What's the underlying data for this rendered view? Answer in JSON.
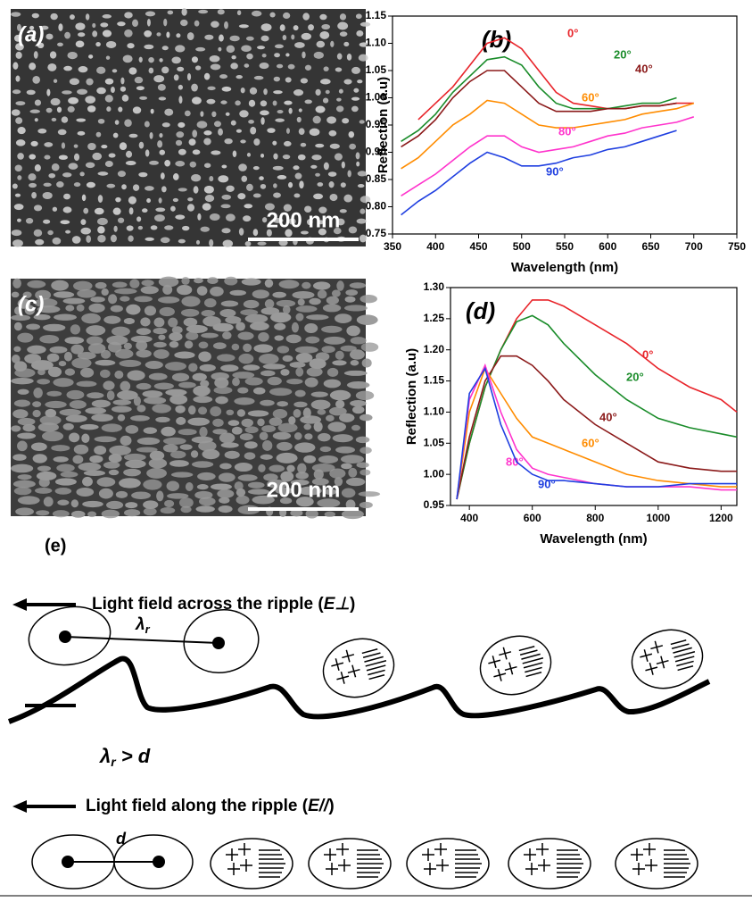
{
  "panels": {
    "a": {
      "label": "(a)",
      "scale_bar": "200 nm"
    },
    "c": {
      "label": "(c)",
      "scale_bar": "200 nm"
    },
    "e": {
      "label": "(e)",
      "across": {
        "prefix": "Light field across the ripple (",
        "symbol": "E⊥",
        "suffix": ")"
      },
      "lambda": {
        "symbol": "λ",
        "subscript": "r"
      },
      "condition": {
        "symbol": "λ",
        "subscript": "r",
        "rest": " > d"
      },
      "along": {
        "prefix": "Light field along the ripple (",
        "symbol": "E//",
        "suffix": ")"
      },
      "spacing": "d"
    }
  },
  "chart_data": [
    {
      "type": "line",
      "label": "(b)",
      "x_label": "Wavelength (nm)",
      "y_label": "Reflection (a.u)",
      "x": [
        360,
        380,
        400,
        420,
        440,
        460,
        480,
        500,
        520,
        540,
        560,
        580,
        600,
        620,
        640,
        660,
        680,
        700
      ],
      "series": [
        {
          "name": "0°",
          "color": "#e8242a",
          "values": [
            null,
            0.96,
            0.99,
            1.02,
            1.06,
            1.1,
            1.11,
            1.09,
            1.05,
            1.01,
            0.99,
            0.985,
            0.98,
            0.98,
            0.985,
            0.985,
            0.99,
            0.99
          ]
        },
        {
          "name": "20°",
          "color": "#1a8c2a",
          "values": [
            0.92,
            0.94,
            0.97,
            1.01,
            1.04,
            1.07,
            1.075,
            1.06,
            1.02,
            0.99,
            0.98,
            0.98,
            0.98,
            0.985,
            0.99,
            0.99,
            1.0,
            null
          ]
        },
        {
          "name": "40°",
          "color": "#8b1a1a",
          "values": [
            0.91,
            0.93,
            0.96,
            1.0,
            1.03,
            1.05,
            1.05,
            1.02,
            0.99,
            0.975,
            0.975,
            0.975,
            0.98,
            0.98,
            0.985,
            0.985,
            0.99,
            null
          ]
        },
        {
          "name": "60°",
          "color": "#ff8c00",
          "values": [
            0.87,
            0.89,
            0.92,
            0.95,
            0.97,
            0.995,
            0.99,
            0.97,
            0.95,
            0.945,
            0.945,
            0.95,
            0.955,
            0.96,
            0.97,
            0.975,
            0.98,
            0.99
          ]
        },
        {
          "name": "80°",
          "color": "#ff33cc",
          "values": [
            0.82,
            0.84,
            0.86,
            0.885,
            0.91,
            0.93,
            0.93,
            0.91,
            0.9,
            0.905,
            0.91,
            0.92,
            0.93,
            0.935,
            0.945,
            0.95,
            0.955,
            0.965
          ]
        },
        {
          "name": "90°",
          "color": "#1f3fe0",
          "values": [
            0.785,
            0.81,
            0.83,
            0.855,
            0.88,
            0.9,
            0.89,
            0.875,
            0.875,
            0.88,
            0.89,
            0.895,
            0.905,
            0.91,
            0.92,
            0.93,
            0.94,
            null
          ]
        }
      ],
      "xlim": [
        350,
        750
      ],
      "xticks": [
        350,
        400,
        450,
        500,
        550,
        600,
        650,
        700,
        750
      ],
      "ylim": [
        0.75,
        1.15
      ],
      "yticks": [
        0.75,
        {
          "value": 0.8,
          "label": "0.80"
        },
        0.85,
        {
          "value": 0.9,
          "label": "0.90"
        },
        0.95,
        {
          "value": 1.0,
          "label": "1.00"
        },
        1.05,
        {
          "value": 1.1,
          "label": "1.10"
        },
        1.15
      ]
    },
    {
      "type": "line",
      "label": "(d)",
      "x_label": "Wavelength (nm)",
      "y_label": "Reflection (a.u)",
      "x": [
        360,
        400,
        450,
        500,
        550,
        600,
        650,
        700,
        800,
        900,
        1000,
        1100,
        1200,
        1250
      ],
      "series": [
        {
          "name": "0°",
          "color": "#e8242a",
          "values": [
            0.96,
            1.05,
            1.14,
            1.2,
            1.25,
            1.28,
            1.28,
            1.27,
            1.24,
            1.21,
            1.17,
            1.14,
            1.12,
            1.1
          ]
        },
        {
          "name": "20°",
          "color": "#1a8c2a",
          "values": [
            0.96,
            1.05,
            1.14,
            1.2,
            1.245,
            1.255,
            1.24,
            1.21,
            1.16,
            1.12,
            1.09,
            1.075,
            1.065,
            1.06
          ]
        },
        {
          "name": "40°",
          "color": "#8b1a1a",
          "values": [
            0.96,
            1.06,
            1.15,
            1.19,
            1.19,
            1.175,
            1.15,
            1.12,
            1.08,
            1.05,
            1.02,
            1.01,
            1.005,
            1.005
          ]
        },
        {
          "name": "60°",
          "color": "#ff8c00",
          "values": [
            0.96,
            1.1,
            1.17,
            1.13,
            1.09,
            1.06,
            1.05,
            1.04,
            1.02,
            1.0,
            0.99,
            0.985,
            0.98,
            0.98
          ]
        },
        {
          "name": "80°",
          "color": "#ff33cc",
          "values": [
            0.96,
            1.12,
            1.175,
            1.1,
            1.04,
            1.01,
            1.0,
            0.995,
            0.985,
            0.98,
            0.98,
            0.98,
            0.975,
            0.975
          ]
        },
        {
          "name": "90°",
          "color": "#1f3fe0",
          "values": [
            0.96,
            1.13,
            1.17,
            1.08,
            1.02,
            1.0,
            0.99,
            0.99,
            0.985,
            0.98,
            0.98,
            0.985,
            0.985,
            0.985
          ]
        }
      ],
      "xlim": [
        340,
        1250
      ],
      "xticks": [
        400,
        600,
        800,
        1000,
        1200
      ],
      "ylim": [
        0.95,
        1.3
      ],
      "yticks": [
        0.95,
        {
          "value": 1.0,
          "label": "1.00"
        },
        1.05,
        {
          "value": 1.1,
          "label": "1.10"
        },
        1.15,
        {
          "value": 1.2,
          "label": "1.20"
        },
        1.25,
        {
          "value": 1.3,
          "label": "1.30"
        }
      ]
    }
  ]
}
